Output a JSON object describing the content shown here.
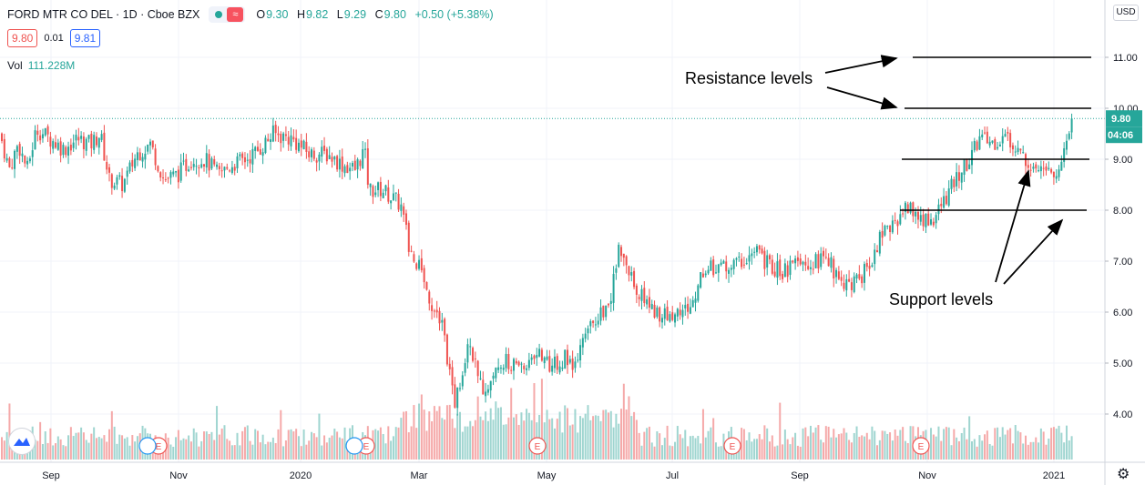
{
  "header": {
    "symbol": "FORD MTR CO DEL · 1D · Cboe BZX",
    "ohlc": [
      {
        "k": "O",
        "v": "9.30"
      },
      {
        "k": "H",
        "v": "9.82"
      },
      {
        "k": "L",
        "v": "9.29"
      },
      {
        "k": "C",
        "v": "9.80"
      }
    ],
    "change": "+0.50 (+5.38%)",
    "wave_glyph": "≈"
  },
  "quotes": {
    "bid": "9.80",
    "spread": "0.01",
    "ask": "9.81"
  },
  "volume": {
    "label": "Vol",
    "value": "111.228M"
  },
  "currency": "USD",
  "price_badge": {
    "price": "9.80",
    "countdown": "04:06"
  },
  "annotations": {
    "resistance": "Resistance levels",
    "support": "Support levels"
  },
  "earnings_marker": "E",
  "colors": {
    "up": "#26a69a",
    "down": "#ef5350",
    "vol_up": "#9fd5d0",
    "vol_down": "#f5a9a9",
    "grid": "#f0f3fa",
    "accent": "#26a69a"
  },
  "chart_data": {
    "type": "candlestick",
    "yaxis": {
      "ticks": [
        4.0,
        5.0,
        6.0,
        7.0,
        8.0,
        9.0,
        10.0,
        11.0
      ],
      "range": [
        3.0,
        11.5
      ]
    },
    "xaxis": {
      "ticks": [
        "Sep",
        "Nov",
        "2020",
        "Mar",
        "May",
        "Jul",
        "Sep",
        "Nov",
        "2021"
      ]
    },
    "last_price": 9.8,
    "resistance_levels": [
      11.0,
      10.0
    ],
    "support_levels": [
      9.0,
      8.0
    ],
    "price_path": [
      [
        0,
        9.5
      ],
      [
        10,
        8.8
      ],
      [
        20,
        9.3
      ],
      [
        30,
        8.8
      ],
      [
        40,
        9.6
      ],
      [
        55,
        9.4
      ],
      [
        70,
        9.2
      ],
      [
        85,
        9.4
      ],
      [
        100,
        9.3
      ],
      [
        110,
        9.5
      ],
      [
        120,
        8.6
      ],
      [
        135,
        8.5
      ],
      [
        150,
        9.1
      ],
      [
        165,
        9.3
      ],
      [
        180,
        8.6
      ],
      [
        195,
        8.7
      ],
      [
        210,
        9.0
      ],
      [
        225,
        9.0
      ],
      [
        240,
        8.7
      ],
      [
        255,
        8.9
      ],
      [
        270,
        9.0
      ],
      [
        285,
        9.2
      ],
      [
        300,
        9.5
      ],
      [
        320,
        9.4
      ],
      [
        340,
        9.1
      ],
      [
        360,
        9.1
      ],
      [
        375,
        8.9
      ],
      [
        390,
        8.8
      ],
      [
        400,
        9.2
      ],
      [
        405,
        8.4
      ],
      [
        420,
        8.4
      ],
      [
        440,
        8.1
      ],
      [
        450,
        7.2
      ],
      [
        460,
        6.9
      ],
      [
        475,
        6.1
      ],
      [
        485,
        5.9
      ],
      [
        492,
        5.0
      ],
      [
        500,
        4.2
      ],
      [
        508,
        4.9
      ],
      [
        515,
        5.6
      ],
      [
        525,
        4.6
      ],
      [
        535,
        4.5
      ],
      [
        548,
        5.1
      ],
      [
        560,
        5.0
      ],
      [
        575,
        4.9
      ],
      [
        590,
        5.3
      ],
      [
        605,
        4.9
      ],
      [
        620,
        5.1
      ],
      [
        630,
        4.8
      ],
      [
        640,
        5.4
      ],
      [
        655,
        5.9
      ],
      [
        670,
        6.2
      ],
      [
        680,
        7.3
      ],
      [
        690,
        6.8
      ],
      [
        700,
        6.4
      ],
      [
        715,
        6.1
      ],
      [
        730,
        5.9
      ],
      [
        745,
        6.0
      ],
      [
        760,
        6.1
      ],
      [
        770,
        6.8
      ],
      [
        785,
        6.9
      ],
      [
        800,
        6.9
      ],
      [
        815,
        7.0
      ],
      [
        830,
        7.2
      ],
      [
        845,
        6.9
      ],
      [
        860,
        6.8
      ],
      [
        875,
        6.9
      ],
      [
        890,
        6.9
      ],
      [
        905,
        7.1
      ],
      [
        920,
        6.7
      ],
      [
        935,
        6.5
      ],
      [
        950,
        6.8
      ],
      [
        965,
        7.4
      ],
      [
        980,
        7.7
      ],
      [
        995,
        8.1
      ],
      [
        1010,
        7.8
      ],
      [
        1025,
        7.8
      ],
      [
        1040,
        8.3
      ],
      [
        1055,
        8.8
      ],
      [
        1065,
        9.0
      ],
      [
        1075,
        9.4
      ],
      [
        1090,
        9.3
      ],
      [
        1105,
        9.4
      ],
      [
        1120,
        9.1
      ],
      [
        1135,
        8.9
      ],
      [
        1150,
        8.8
      ],
      [
        1160,
        8.6
      ],
      [
        1170,
        9.3
      ],
      [
        1177,
        9.8
      ]
    ]
  }
}
